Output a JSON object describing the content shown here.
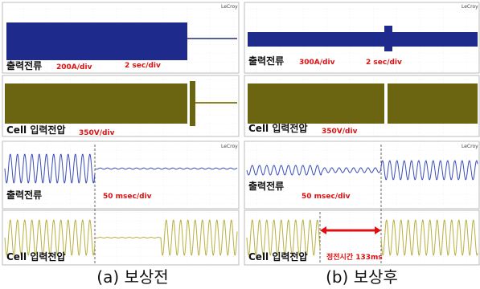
{
  "panels": [
    {
      "caption": "(a) 보상전",
      "scopes": [
        {
          "brand": "LeCroy",
          "label": "출력전류",
          "scale": "200A/div",
          "time": "2 sec/div"
        },
        {
          "label": "Cell 입력전압",
          "scale": "350V/div"
        },
        {
          "brand": "LeCroy",
          "label": "출력전류",
          "time": "50 msec/div"
        },
        {
          "label": "Cell 입력전압"
        }
      ]
    },
    {
      "caption": "(b) 보상후",
      "scopes": [
        {
          "brand": "LeCroy",
          "label": "출력전류",
          "scale": "300A/div",
          "time": "2 sec/div"
        },
        {
          "label": "Cell 입력전압",
          "scale": "350V/div"
        },
        {
          "brand": "LeCroy",
          "label": "출력전류",
          "time": "50 msec/div"
        },
        {
          "label": "Cell 입력전압",
          "note": "정전시간 133ms"
        }
      ]
    }
  ]
}
